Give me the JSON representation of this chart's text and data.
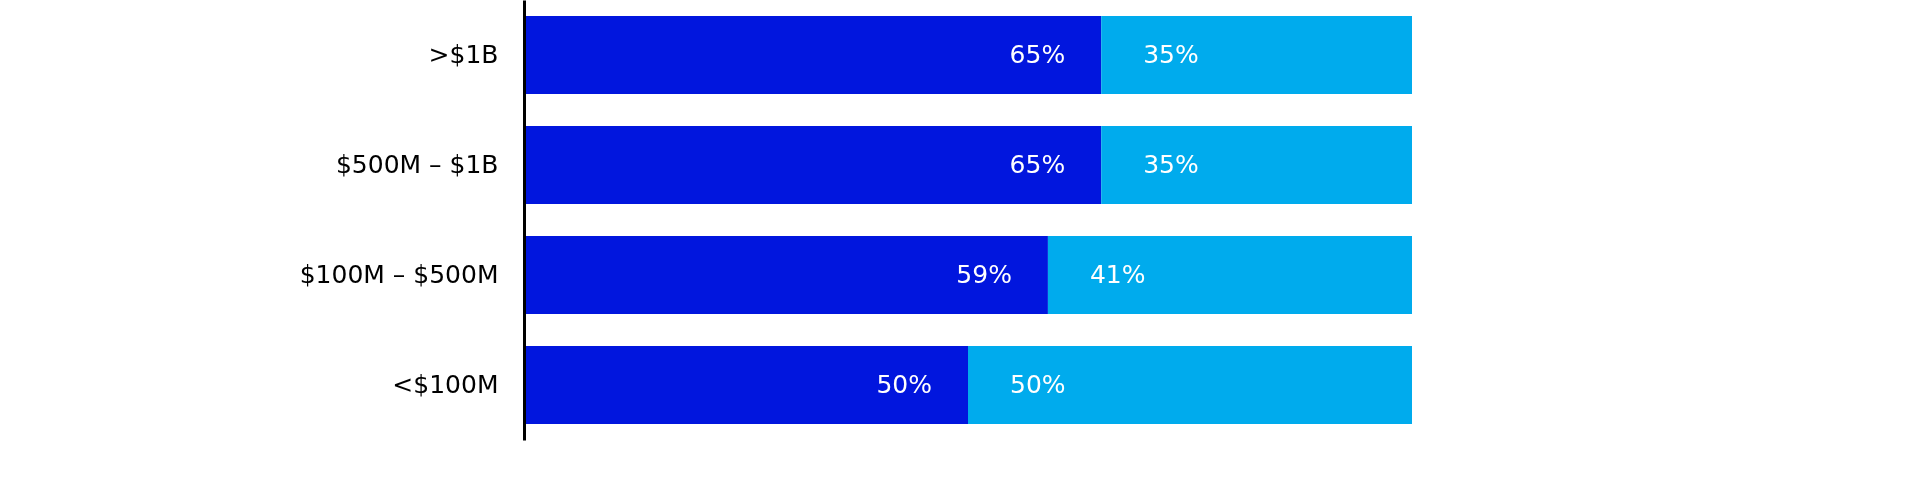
{
  "chart_data": {
    "type": "bar",
    "orientation": "horizontal",
    "stacked": true,
    "categories": [
      ">$1B",
      "$500M – $1B",
      "$100M – $500M",
      "<$100M"
    ],
    "series": [
      {
        "color": "#0116de",
        "values": [
          65,
          65,
          59,
          50
        ],
        "value_labels": [
          "65%",
          "65%",
          "59%",
          "50%"
        ]
      },
      {
        "color": "#00abed",
        "values": [
          35,
          35,
          41,
          50
        ],
        "value_labels": [
          "35%",
          "35%",
          "41%",
          "50%"
        ]
      }
    ],
    "xlim": [
      0,
      100
    ],
    "tick_labels": "y"
  }
}
